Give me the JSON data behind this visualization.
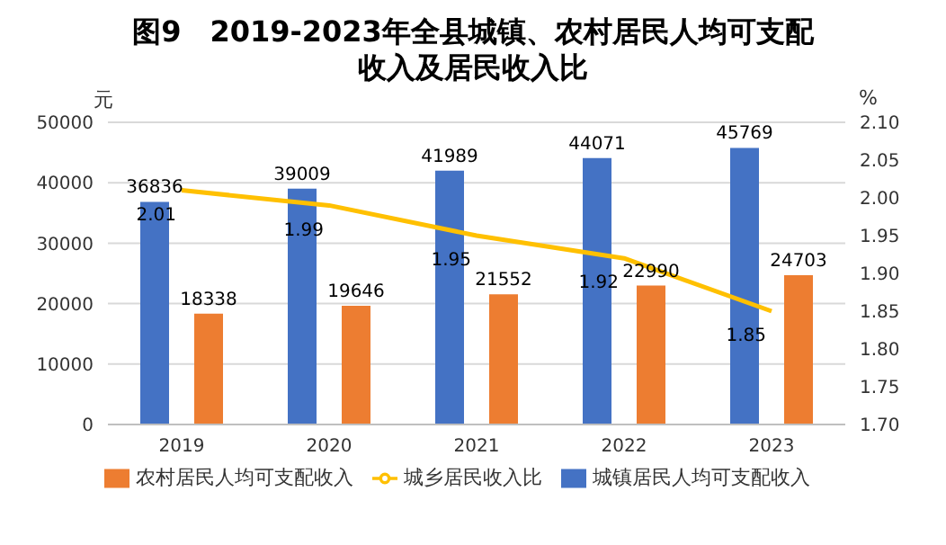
{
  "chart_data": {
    "type": "bar",
    "title": "图9　2019-2023年全县城镇、农村居民人均可支配收入及居民收入比",
    "ylabel": "元",
    "y2label": "%",
    "categories": [
      "2019",
      "2020",
      "2021",
      "2022",
      "2023"
    ],
    "series": [
      {
        "name": "城镇居民人均可支配收入",
        "color": "#4472c4",
        "values": [
          36836,
          39009,
          41989,
          44071,
          45769
        ]
      },
      {
        "name": "农村居民人均可支配收入",
        "color": "#ed7d31",
        "values": [
          18338,
          19646,
          21552,
          22990,
          24703
        ]
      },
      {
        "name": "城乡居民收入比",
        "type": "line",
        "axis": "y2",
        "color": "#ffc000",
        "values": [
          2.01,
          1.99,
          1.95,
          1.92,
          1.85
        ]
      }
    ],
    "ylim": [
      0,
      50000
    ],
    "yticks": [
      0,
      10000,
      20000,
      30000,
      40000,
      50000
    ],
    "y2lim": [
      1.7,
      2.1
    ],
    "y2ticks": [
      {
        "value": 1.7,
        "label": "1.70"
      },
      {
        "value": 1.75,
        "label": "1.75"
      },
      {
        "value": 1.8,
        "label": "1.80"
      },
      {
        "value": 1.85,
        "label": "1.85"
      },
      {
        "value": 1.9,
        "label": "1.90"
      },
      {
        "value": 1.95,
        "label": "1.95"
      },
      {
        "value": 2.0,
        "label": "2.00"
      },
      {
        "value": 2.05,
        "label": "2.05"
      },
      {
        "value": 2.1,
        "label": "2.10"
      }
    ],
    "grid": "y",
    "legend": "bottom",
    "marker": "none",
    "data_labels": true
  }
}
